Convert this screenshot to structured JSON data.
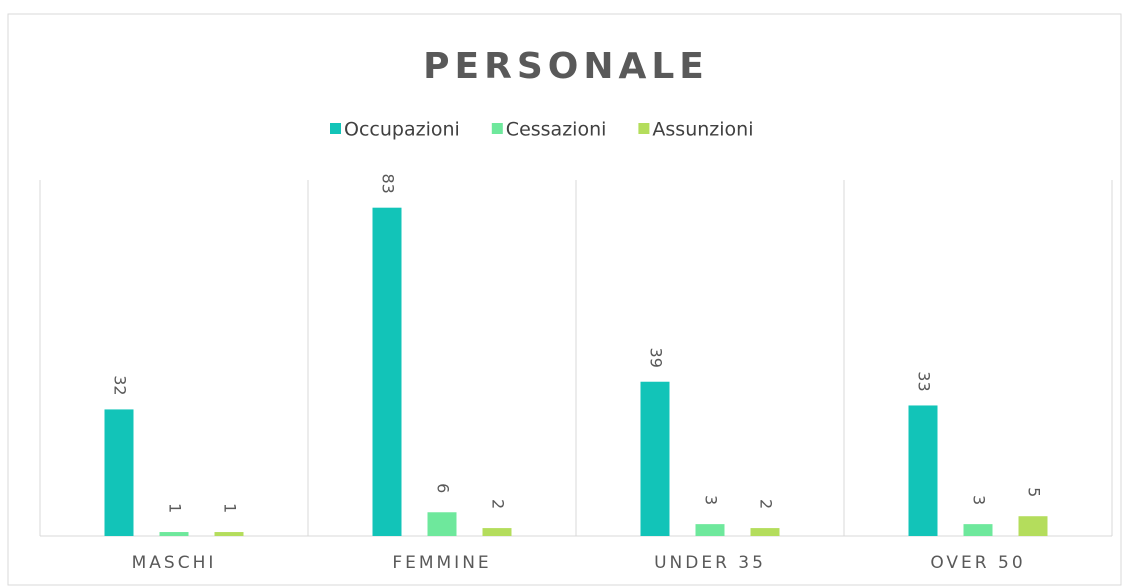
{
  "chart_data": {
    "type": "bar",
    "title": "PERSONALE",
    "categories": [
      "MASCHI",
      "FEMMINE",
      "UNDER 35",
      "OVER 50"
    ],
    "series": [
      {
        "name": "Occupazioni",
        "color": "#12c4b8",
        "values": [
          32,
          83,
          39,
          33
        ]
      },
      {
        "name": "Cessazioni",
        "color": "#6ee89c",
        "values": [
          1,
          6,
          3,
          3
        ]
      },
      {
        "name": "Assunzioni",
        "color": "#b4dd5c",
        "values": [
          1,
          2,
          2,
          5
        ]
      }
    ],
    "ylim": [
      0,
      90
    ],
    "legend": "top",
    "grid": false
  }
}
